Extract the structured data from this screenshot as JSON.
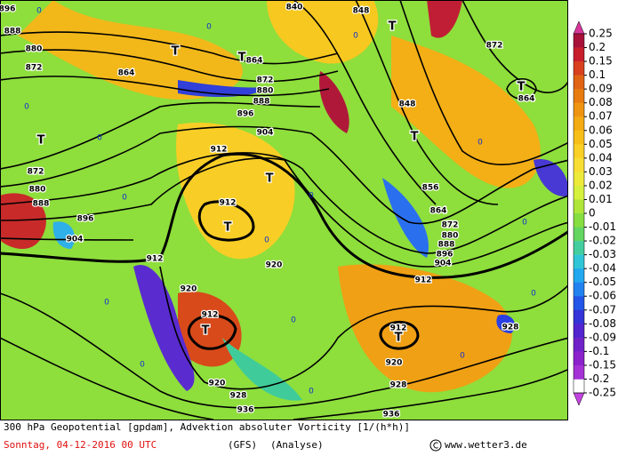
{
  "map": {
    "contours": [
      "896",
      "888",
      "880",
      "872",
      "864",
      "840",
      "848",
      "864",
      "872",
      "880",
      "888",
      "896",
      "904",
      "912",
      "912",
      "912",
      "920",
      "920",
      "912",
      "912",
      "920",
      "928",
      "936",
      "936",
      "928",
      "920",
      "904",
      "896",
      "888",
      "880",
      "872",
      "872",
      "864",
      "848",
      "856",
      "864",
      "872",
      "880",
      "888",
      "896",
      "904",
      "912",
      "928"
    ],
    "lows": [
      "T",
      "T",
      "T",
      "T",
      "T",
      "T",
      "T",
      "T",
      "T",
      "T"
    ],
    "zero_labels": [
      "0",
      "0",
      "0",
      "0",
      "0",
      "0",
      "0",
      "0",
      "0",
      "0",
      "0",
      "0",
      "0",
      "0",
      "0",
      "0"
    ]
  },
  "colorbar": {
    "labels": [
      "0.25",
      "0.2",
      "0.15",
      "0.1",
      "0.09",
      "0.08",
      "0.07",
      "0.06",
      "0.05",
      "0.04",
      "0.03",
      "0.02",
      "0.01",
      "0",
      "-0.01",
      "-0.02",
      "-0.03",
      "-0.04",
      "-0.05",
      "-0.06",
      "-0.07",
      "-0.08",
      "-0.09",
      "-0.1",
      "-0.15",
      "-0.2",
      "-0.25"
    ],
    "colors": [
      "#a8123a",
      "#c81e2c",
      "#d8401e",
      "#e06414",
      "#e87c10",
      "#ef9410",
      "#f4aa12",
      "#f8be18",
      "#fad026",
      "#f8de34",
      "#eeea3c",
      "#d6f03e",
      "#aee63a",
      "#86de40",
      "#62d660",
      "#44cea0",
      "#30c6d8",
      "#22a8f0",
      "#2282f0",
      "#2256e8",
      "#3434d8",
      "#5224d0",
      "#7022c8",
      "#8c22cc",
      "#a432d6"
    ],
    "top_color": "#d8369a",
    "bottom_color": "#c244e0"
  },
  "footer": {
    "line1": "300 hPa Geopotential [gpdam], Advektion absoluter Vorticity [1/(h*h)]",
    "date": "Sonntag, 04-12-2016  00 UTC",
    "model": "(GFS)",
    "kind": "(Analyse)",
    "site": "www.wetter3.de"
  }
}
